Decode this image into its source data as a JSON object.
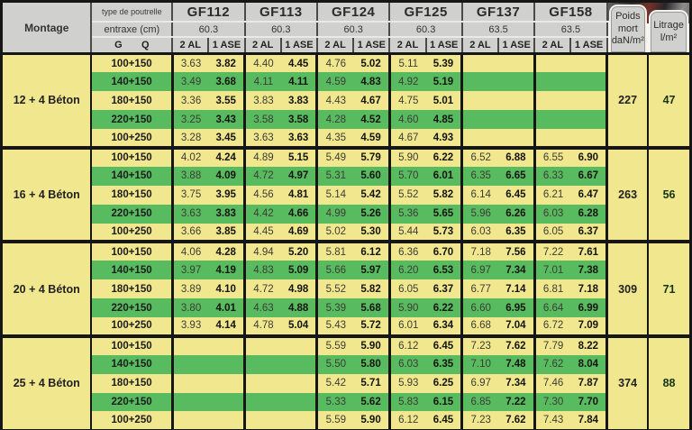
{
  "header": {
    "montage": "Montage",
    "type_label": "type de poutrelle",
    "entraxe_label": "entraxe (cm)",
    "g_label": "G",
    "q_label": "Q",
    "beam_types": [
      {
        "name": "GF112",
        "entraxe": "60.3"
      },
      {
        "name": "GF113",
        "entraxe": "60.3"
      },
      {
        "name": "GF124",
        "entraxe": "60.3"
      },
      {
        "name": "GF125",
        "entraxe": "60.3"
      },
      {
        "name": "GF137",
        "entraxe": "63.5"
      },
      {
        "name": "GF158",
        "entraxe": "63.5"
      }
    ],
    "load_cases": [
      "2 AL",
      "1 ASE"
    ],
    "poids_label": "Poids\nmort\ndaN/m²",
    "litrage_label": "Litrage\nl/m²"
  },
  "colors": {
    "row_yellow": "#F1E78E",
    "row_green": "#58BB60",
    "header_gray": "#D0D0CF",
    "border_black": "#161616"
  },
  "blocks": [
    {
      "montage": "12 + 4 Béton",
      "poids_mort": "227",
      "litrage": "47",
      "rows": [
        {
          "gq": "100+150",
          "values": [
            "3.63",
            "3.82",
            "4.40",
            "4.45",
            "4.76",
            "5.02",
            "5.11",
            "5.39",
            "",
            "",
            "",
            ""
          ]
        },
        {
          "gq": "140+150",
          "values": [
            "3.49",
            "3.68",
            "4.11",
            "4.11",
            "4.59",
            "4.83",
            "4.92",
            "5.19",
            "",
            "",
            "",
            ""
          ]
        },
        {
          "gq": "180+150",
          "values": [
            "3.36",
            "3.55",
            "3.83",
            "3.83",
            "4.43",
            "4.67",
            "4.75",
            "5.01",
            "",
            "",
            "",
            ""
          ]
        },
        {
          "gq": "220+150",
          "values": [
            "3.25",
            "3.43",
            "3.58",
            "3.58",
            "4.28",
            "4.52",
            "4.60",
            "4.85",
            "",
            "",
            "",
            ""
          ]
        },
        {
          "gq": "100+250",
          "values": [
            "3.28",
            "3.45",
            "3.63",
            "3.63",
            "4.35",
            "4.59",
            "4.67",
            "4.93",
            "",
            "",
            "",
            ""
          ]
        }
      ]
    },
    {
      "montage": "16 + 4 Béton",
      "poids_mort": "263",
      "litrage": "56",
      "rows": [
        {
          "gq": "100+150",
          "values": [
            "4.02",
            "4.24",
            "4.89",
            "5.15",
            "5.49",
            "5.79",
            "5.90",
            "6.22",
            "6.52",
            "6.88",
            "6.55",
            "6.90"
          ]
        },
        {
          "gq": "140+150",
          "values": [
            "3.88",
            "4.09",
            "4.72",
            "4.97",
            "5.31",
            "5.60",
            "5.70",
            "6.01",
            "6.35",
            "6.65",
            "6.33",
            "6.67"
          ]
        },
        {
          "gq": "180+150",
          "values": [
            "3.75",
            "3.95",
            "4.56",
            "4.81",
            "5.14",
            "5.42",
            "5.52",
            "5.82",
            "6.14",
            "6.45",
            "6.21",
            "6.47"
          ]
        },
        {
          "gq": "220+150",
          "values": [
            "3.63",
            "3.83",
            "4.42",
            "4.66",
            "4.99",
            "5.26",
            "5.36",
            "5.65",
            "5.96",
            "6.26",
            "6.03",
            "6.28"
          ]
        },
        {
          "gq": "100+250",
          "values": [
            "3.66",
            "3.85",
            "4.45",
            "4.69",
            "5.02",
            "5.30",
            "5.44",
            "5.73",
            "6.03",
            "6.35",
            "6.05",
            "6.37"
          ]
        }
      ]
    },
    {
      "montage": "20 + 4 Béton",
      "poids_mort": "309",
      "litrage": "71",
      "rows": [
        {
          "gq": "100+150",
          "values": [
            "4.06",
            "4.28",
            "4.94",
            "5.20",
            "5.81",
            "6.12",
            "6.36",
            "6.70",
            "7.18",
            "7.56",
            "7.22",
            "7.61"
          ]
        },
        {
          "gq": "140+150",
          "values": [
            "3.97",
            "4.19",
            "4.83",
            "5.09",
            "5.66",
            "5.97",
            "6.20",
            "6.53",
            "6.97",
            "7.34",
            "7.01",
            "7.38"
          ]
        },
        {
          "gq": "180+150",
          "values": [
            "3.89",
            "4.10",
            "4.72",
            "4.98",
            "5.52",
            "5.82",
            "6.05",
            "6.37",
            "6.77",
            "7.14",
            "6.81",
            "7.18"
          ]
        },
        {
          "gq": "220+150",
          "values": [
            "3.80",
            "4.01",
            "4.63",
            "4.88",
            "5.39",
            "5.68",
            "5.90",
            "6.22",
            "6.60",
            "6.95",
            "6.64",
            "6.99"
          ]
        },
        {
          "gq": "100+250",
          "values": [
            "3.93",
            "4.14",
            "4.78",
            "5.04",
            "5.43",
            "5.72",
            "6.01",
            "6.34",
            "6.68",
            "7.04",
            "6.72",
            "7.09"
          ]
        }
      ]
    },
    {
      "montage": "25 + 4 Béton",
      "poids_mort": "374",
      "litrage": "88",
      "rows": [
        {
          "gq": "100+150",
          "values": [
            "",
            "",
            "",
            "",
            "5.59",
            "5.90",
            "6.12",
            "6.45",
            "7.23",
            "7.62",
            "7.79",
            "8.22"
          ]
        },
        {
          "gq": "140+150",
          "values": [
            "",
            "",
            "",
            "",
            "5.50",
            "5.80",
            "6.03",
            "6.35",
            "7.10",
            "7.48",
            "7.62",
            "8.04"
          ]
        },
        {
          "gq": "180+150",
          "values": [
            "",
            "",
            "",
            "",
            "5.42",
            "5.71",
            "5.93",
            "6.25",
            "6.97",
            "7.34",
            "7.46",
            "7.87"
          ]
        },
        {
          "gq": "220+150",
          "values": [
            "",
            "",
            "",
            "",
            "5.33",
            "5.62",
            "5.83",
            "6.15",
            "6.85",
            "7.22",
            "7.30",
            "7.70"
          ]
        },
        {
          "gq": "100+250",
          "values": [
            "",
            "",
            "",
            "",
            "5.59",
            "5.90",
            "6.12",
            "6.45",
            "7.23",
            "7.62",
            "7.43",
            "7.84"
          ]
        }
      ]
    }
  ]
}
